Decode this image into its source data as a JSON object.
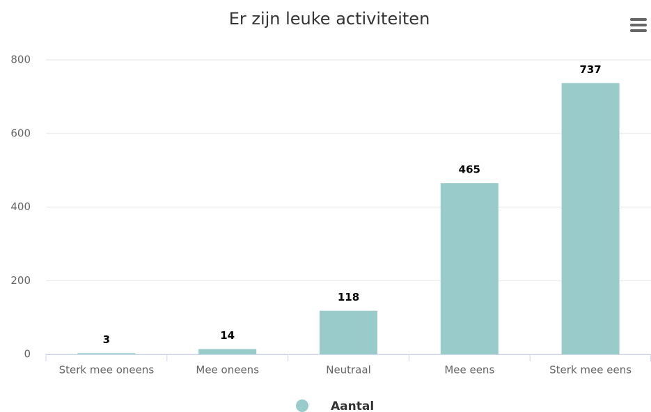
{
  "chart_data": {
    "type": "bar",
    "title": "Er zijn leuke activiteiten",
    "categories": [
      "Sterk mee oneens",
      "Mee oneens",
      "Neutraal",
      "Mee eens",
      "Sterk mee eens"
    ],
    "series": [
      {
        "name": "Aantal",
        "color": "#99cbcb",
        "values": [
          3,
          14,
          118,
          465,
          737
        ]
      }
    ],
    "ylim": [
      0,
      800
    ],
    "yticks": [
      0,
      200,
      400,
      600,
      800
    ],
    "grid": true,
    "legend": "bottom"
  }
}
